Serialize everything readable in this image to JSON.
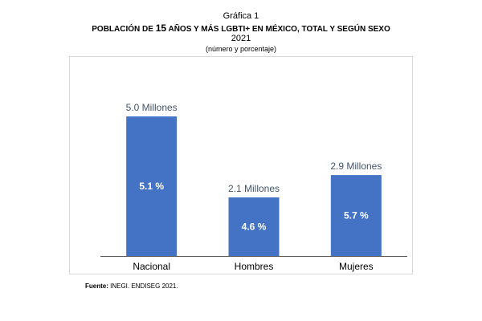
{
  "header": {
    "figure_label": "Gráfica 1",
    "title_part1": "POBLACIÓN DE ",
    "title_number": "15",
    "title_part2": " AÑOS Y MÁS LGBTI+ EN MÉXICO, TOTAL Y SEGÚN SEXO",
    "year": "2021",
    "subtitle": "(número y porcentaje)"
  },
  "source": {
    "label": "Fuente:",
    "text_small": " INEGI. ENDISEG ",
    "text_year": "2021."
  },
  "chart_data": {
    "type": "bar",
    "title": "POBLACIÓN DE 15 AÑOS Y MÁS LGBTI+ EN MÉXICO, TOTAL Y SEGÚN SEXO",
    "categories": [
      "Nacional",
      "Hombres",
      "Mujeres"
    ],
    "series": [
      {
        "values": [
          5.0,
          2.1,
          2.9
        ],
        "value_labels": [
          "5.0 Millones",
          "2.1 Millones",
          "2.9 Millones"
        ],
        "percent_labels": [
          "5.1 %",
          "4.6 %",
          "5.7 %"
        ]
      }
    ],
    "ylim": [
      0,
      5.75
    ],
    "grid": false,
    "legend": "none",
    "colors": {
      "bar": "#4472c4",
      "value_label": "#44546a",
      "percent_label": "#ffffff",
      "axis": "#595959"
    }
  }
}
